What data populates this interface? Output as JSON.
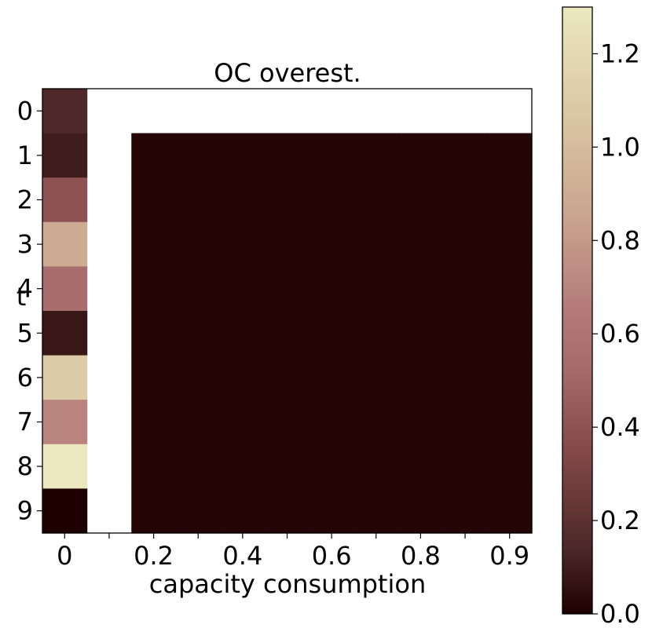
{
  "chart_data": {
    "type": "heatmap",
    "title": "OC overest.",
    "xlabel": "capacity consumption",
    "ylabel": "t",
    "x_tick_labels": [
      "0",
      "0.2",
      "0.4",
      "0.6",
      "0.8",
      "0.9"
    ],
    "y_tick_labels": [
      "0",
      "1",
      "2",
      "3",
      "4",
      "5",
      "6",
      "7",
      "8",
      "9"
    ],
    "n_cols": 11,
    "n_rows": 10,
    "cells": [
      [
        0.15,
        null,
        null,
        null,
        null,
        null,
        null,
        null,
        null,
        null,
        null
      ],
      [
        0.1,
        null,
        0.02,
        0.02,
        0.02,
        0.02,
        0.02,
        0.02,
        0.02,
        0.02,
        0.02
      ],
      [
        0.4,
        null,
        0.02,
        0.02,
        0.02,
        0.02,
        0.02,
        0.02,
        0.02,
        0.02,
        0.02
      ],
      [
        0.9,
        null,
        0.02,
        0.02,
        0.02,
        0.02,
        0.02,
        0.02,
        0.02,
        0.02,
        0.02
      ],
      [
        0.55,
        null,
        0.02,
        0.02,
        0.02,
        0.02,
        0.02,
        0.02,
        0.02,
        0.02,
        0.02
      ],
      [
        0.08,
        null,
        0.02,
        0.02,
        0.02,
        0.02,
        0.02,
        0.02,
        0.02,
        0.02,
        0.02
      ],
      [
        1.1,
        null,
        0.02,
        0.02,
        0.02,
        0.02,
        0.02,
        0.02,
        0.02,
        0.02,
        0.02
      ],
      [
        0.7,
        null,
        0.02,
        0.02,
        0.02,
        0.02,
        0.02,
        0.02,
        0.02,
        0.02,
        0.02
      ],
      [
        1.3,
        null,
        0.02,
        0.02,
        0.02,
        0.02,
        0.02,
        0.02,
        0.02,
        0.02,
        0.02
      ],
      [
        0.0,
        null,
        0.02,
        0.02,
        0.02,
        0.02,
        0.02,
        0.02,
        0.02,
        0.02,
        0.02
      ]
    ],
    "colorbar": {
      "min": 0.0,
      "max": 1.3,
      "ticks": [
        0.0,
        0.2,
        0.4,
        0.6,
        0.8,
        1.0,
        1.2
      ],
      "tick_labels": [
        "0.0",
        "0.2",
        "0.4",
        "0.6",
        "0.8",
        "1.0",
        "1.2"
      ],
      "colormap": "pink"
    }
  }
}
